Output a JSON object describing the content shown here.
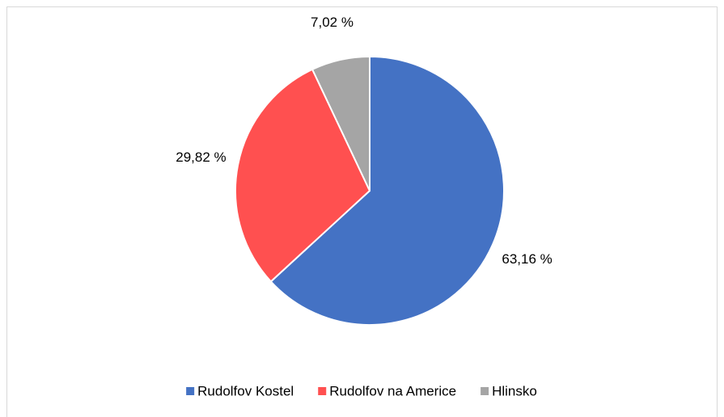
{
  "chart_data": {
    "type": "pie",
    "categories": [
      "Rudolfov Kostel",
      "Rudolfov na Americe",
      "Hlinsko"
    ],
    "values": [
      63.16,
      29.82,
      7.02
    ],
    "value_labels": [
      "63,16 %",
      "29,82 %",
      "7,02 %"
    ],
    "colors": [
      "#4472c4",
      "#ff5050",
      "#a5a5a5"
    ],
    "legend": "bottom"
  }
}
